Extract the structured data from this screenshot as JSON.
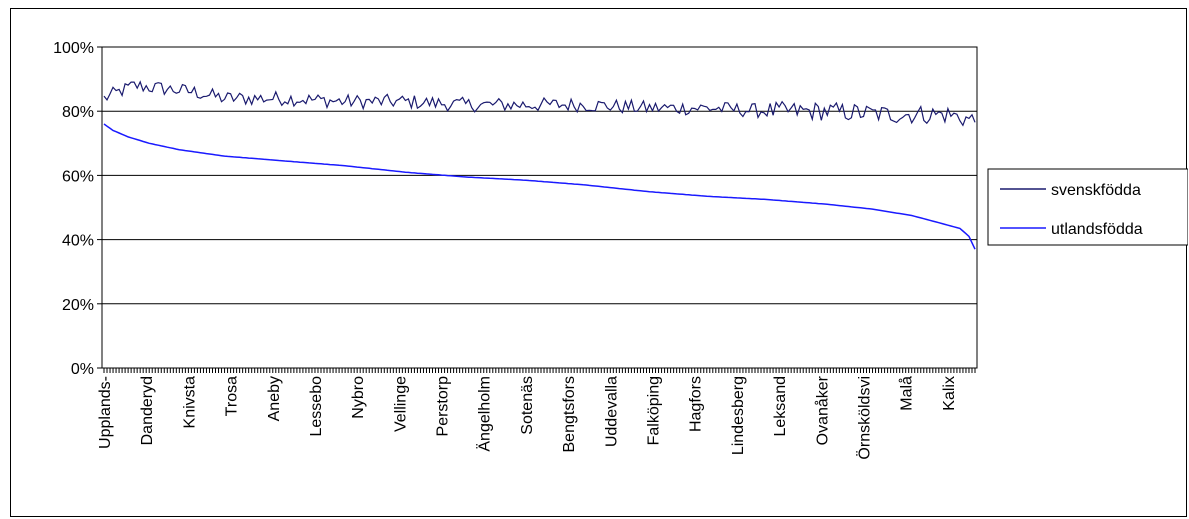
{
  "chart_data": {
    "type": "line",
    "title": "",
    "xlabel": "",
    "ylabel": "",
    "ylim": [
      0,
      100
    ],
    "y_ticks": [
      "0%",
      "20%",
      "40%",
      "60%",
      "80%",
      "100%"
    ],
    "y_tick_values": [
      0,
      20,
      40,
      60,
      80,
      100
    ],
    "grid": true,
    "legend_position": "right",
    "n_points": 290,
    "categories": [
      "Upplands-",
      "Danderyd",
      "Knivsta",
      "Trosa",
      "Aneby",
      "Lessebo",
      "Nybro",
      "Vellinge",
      "Perstorp",
      "Ängelholm",
      "Sotenäs",
      "Bengtsfors",
      "Uddevalla",
      "Falköping",
      "Hagfors",
      "Lindesberg",
      "Leksand",
      "Ovanåker",
      "Örnsköldsvi",
      "Malå",
      "Kalix"
    ],
    "category_index": [
      0,
      14,
      28,
      42,
      56,
      70,
      84,
      98,
      112,
      126,
      140,
      154,
      168,
      182,
      196,
      210,
      224,
      238,
      252,
      266,
      280
    ],
    "series": [
      {
        "name": "svenskfödda",
        "color": "#1a1a6e",
        "points": [
          [
            0,
            84
          ],
          [
            10,
            88
          ],
          [
            20,
            87
          ],
          [
            30,
            86
          ],
          [
            40,
            84
          ],
          [
            60,
            84
          ],
          [
            80,
            83
          ],
          [
            100,
            83
          ],
          [
            120,
            82
          ],
          [
            140,
            82
          ],
          [
            160,
            82
          ],
          [
            180,
            81
          ],
          [
            200,
            81
          ],
          [
            220,
            80
          ],
          [
            240,
            80
          ],
          [
            260,
            79
          ],
          [
            280,
            79
          ],
          [
            289,
            77
          ]
        ]
      },
      {
        "name": "utlandsfödda",
        "color": "#1a1aff",
        "points": [
          [
            0,
            76
          ],
          [
            3,
            74
          ],
          [
            8,
            72
          ],
          [
            15,
            70
          ],
          [
            25,
            68
          ],
          [
            40,
            66
          ],
          [
            60,
            64.5
          ],
          [
            80,
            63
          ],
          [
            100,
            61
          ],
          [
            120,
            59.5
          ],
          [
            140,
            58.5
          ],
          [
            160,
            57
          ],
          [
            180,
            55
          ],
          [
            200,
            53.5
          ],
          [
            220,
            52.5
          ],
          [
            240,
            51
          ],
          [
            255,
            49.5
          ],
          [
            268,
            47.5
          ],
          [
            278,
            45
          ],
          [
            284,
            43.5
          ],
          [
            287,
            41
          ],
          [
            289,
            37
          ]
        ]
      }
    ]
  }
}
